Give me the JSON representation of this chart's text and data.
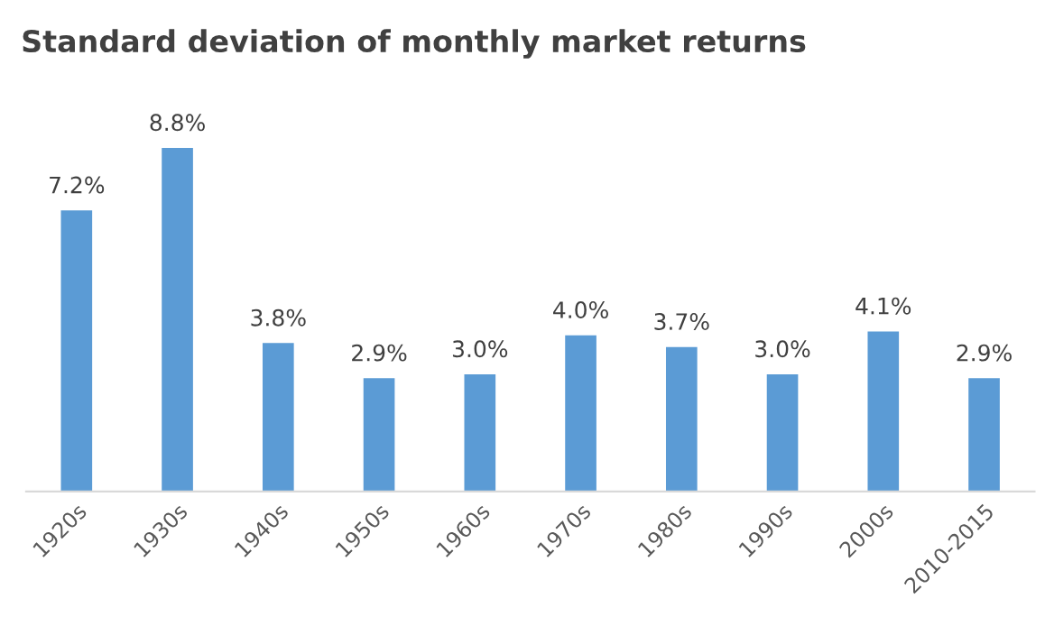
{
  "chart_data": {
    "type": "bar",
    "title": "Standard deviation of monthly market returns",
    "categories": [
      "1920s",
      "1930s",
      "1940s",
      "1950s",
      "1960s",
      "1970s",
      "1980s",
      "1990s",
      "2000s",
      "2010-2015"
    ],
    "values": [
      7.2,
      8.8,
      3.8,
      2.9,
      3.0,
      4.0,
      3.7,
      3.0,
      4.1,
      2.9
    ],
    "value_labels": [
      "7.2%",
      "8.8%",
      "3.8%",
      "2.9%",
      "3.0%",
      "4.0%",
      "3.7%",
      "3.0%",
      "4.1%",
      "2.9%"
    ],
    "color": "#5b9bd5"
  }
}
